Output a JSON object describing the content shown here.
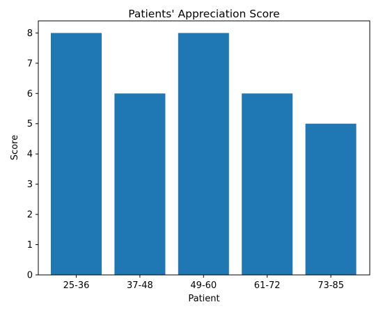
{
  "chart_data": {
    "type": "bar",
    "title": "Patients' Appreciation Score",
    "xlabel": "Patient",
    "ylabel": "Score",
    "categories": [
      "25-36",
      "37-48",
      "49-60",
      "61-72",
      "73-85"
    ],
    "values": [
      8,
      6,
      8,
      6,
      5
    ],
    "ylim": [
      0,
      8.4
    ],
    "yticks": [
      0,
      1,
      2,
      3,
      4,
      5,
      6,
      7,
      8
    ],
    "bar_color": "#1f77b4",
    "grid": false,
    "legend": "none"
  }
}
